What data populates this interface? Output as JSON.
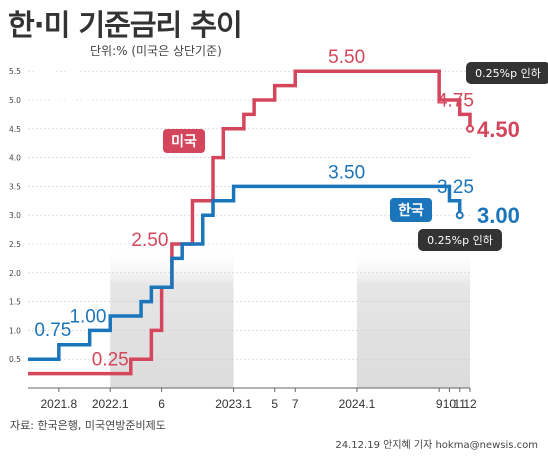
{
  "title": "한·미 기준금리 추이",
  "subtitle": "단위:% (미국은 상단기준)",
  "source": "자료: 한국은행, 미국연방준비제도",
  "credit": "24.12.19 안지혜 기자 hokma@newsis.com",
  "chart_data": {
    "type": "line",
    "step": true,
    "ylim": [
      0.0,
      5.5
    ],
    "yticks": [
      "0.5",
      "1.0",
      "1.5",
      "2.0",
      "2.5",
      "3.0",
      "3.5",
      "4.0",
      "4.5",
      "5.0",
      "5.5"
    ],
    "xlim": [
      "2021-05",
      "2024-12"
    ],
    "xticks": [
      {
        "x": "2021-08",
        "label": "2021.8"
      },
      {
        "x": "2022-01",
        "label": "2022.1"
      },
      {
        "x": "2022-06",
        "label": "6"
      },
      {
        "x": "2023-01",
        "label": "2023.1"
      },
      {
        "x": "2023-05",
        "label": "5"
      },
      {
        "x": "2023-07",
        "label": "7"
      },
      {
        "x": "2024-01",
        "label": "2024.1"
      },
      {
        "x": "2024-09",
        "label": "9"
      },
      {
        "x": "2024-10",
        "label": "10"
      },
      {
        "x": "2024-11",
        "label": "11"
      },
      {
        "x": "2024-12",
        "label": "12"
      }
    ],
    "series": [
      {
        "name": "미국",
        "color": "#d4465b",
        "points": [
          [
            "2021-05",
            0.25
          ],
          [
            "2022-03",
            0.5
          ],
          [
            "2022-05",
            1.0
          ],
          [
            "2022-06",
            1.75
          ],
          [
            "2022-07",
            2.5
          ],
          [
            "2022-09",
            3.25
          ],
          [
            "2022-11",
            4.0
          ],
          [
            "2022-12",
            4.5
          ],
          [
            "2023-02",
            4.75
          ],
          [
            "2023-03",
            5.0
          ],
          [
            "2023-05",
            5.25
          ],
          [
            "2023-07",
            5.5
          ],
          [
            "2024-09",
            5.0
          ],
          [
            "2024-11",
            4.75
          ],
          [
            "2024-12",
            4.5
          ]
        ],
        "annotations": [
          {
            "x": "2022-01",
            "y": 0.25,
            "text": "0.25"
          },
          {
            "x": "2022-07",
            "y": 2.5,
            "text": "2.50"
          },
          {
            "x": "2023-12",
            "y": 5.5,
            "text": "5.50"
          },
          {
            "x": "2024-10",
            "y": 4.75,
            "text": "4.75"
          },
          {
            "x": "2024-12",
            "y": 4.5,
            "text": "4.50"
          }
        ],
        "callout": "0.25%p 인하"
      },
      {
        "name": "한국",
        "color": "#1b75bb",
        "points": [
          [
            "2021-05",
            0.5
          ],
          [
            "2021-08",
            0.75
          ],
          [
            "2021-11",
            1.0
          ],
          [
            "2022-01",
            1.25
          ],
          [
            "2022-04",
            1.5
          ],
          [
            "2022-05",
            1.75
          ],
          [
            "2022-07",
            2.25
          ],
          [
            "2022-08",
            2.5
          ],
          [
            "2022-10",
            3.0
          ],
          [
            "2022-11",
            3.25
          ],
          [
            "2023-01",
            3.5
          ],
          [
            "2024-10",
            3.25
          ],
          [
            "2024-11",
            3.0
          ]
        ],
        "annotations": [
          {
            "x": "2021-08",
            "y": 0.75,
            "text": "0.75"
          },
          {
            "x": "2021-12",
            "y": 1.0,
            "text": "1.00"
          },
          {
            "x": "2023-12",
            "y": 3.5,
            "text": "3.50"
          },
          {
            "x": "2024-10",
            "y": 3.25,
            "text": "3.25"
          },
          {
            "x": "2024-12",
            "y": 3.0,
            "text": "3.00"
          }
        ],
        "callout": "0.25%p 인하"
      }
    ],
    "shaded_ranges": [
      [
        "2022-01",
        "2023-01"
      ],
      [
        "2024-01",
        "2024-12"
      ]
    ],
    "colors": {
      "grid": "#cccccc",
      "shade": "#e6e6e6",
      "callout": "#333333",
      "text": "#444444"
    }
  }
}
